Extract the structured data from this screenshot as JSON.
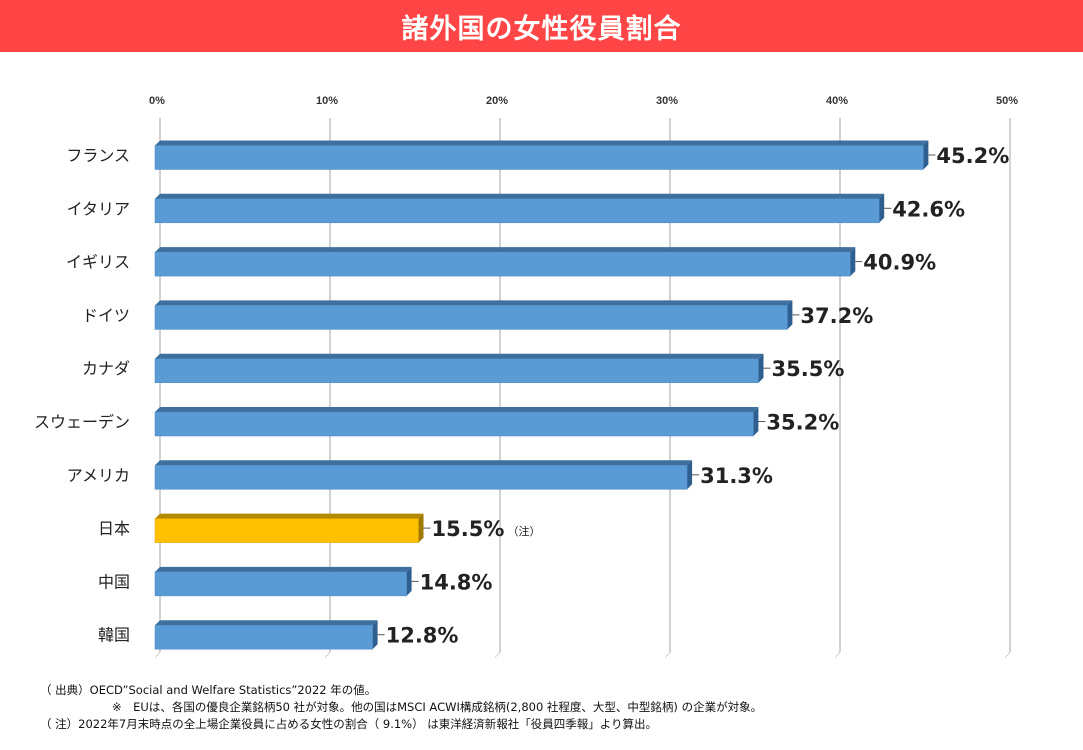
{
  "title": "諸外国の女性役員割合",
  "chart_data": {
    "type": "bar",
    "orientation": "horizontal",
    "categories": [
      "フランス",
      "イタリア",
      "イギリス",
      "ドイツ",
      "カナダ",
      "スウェーデン",
      "アメリカ",
      "日本",
      "中国",
      "韓国"
    ],
    "values": [
      45.2,
      42.6,
      40.9,
      37.2,
      35.5,
      35.2,
      31.3,
      15.5,
      14.8,
      12.8
    ],
    "value_labels": [
      "45.2%",
      "42.6%",
      "40.9%",
      "37.2%",
      "35.5%",
      "35.2%",
      "31.3%",
      "15.5%",
      "14.8%",
      "12.8%"
    ],
    "highlight_index": 7,
    "highlight_note": "（注）",
    "xlim": [
      0,
      50
    ],
    "x_ticks": [
      "0%",
      "10%",
      "20%",
      "30%",
      "40%",
      "50%"
    ],
    "x_tick_values": [
      0,
      10,
      20,
      30,
      40,
      50
    ],
    "tick_position": "top",
    "grid": true,
    "colors": {
      "bar": "#5b9bd5",
      "bar_top": "#3e6f9e",
      "bar_side": "#2f5f8f",
      "highlight": "#ffc000",
      "highlight_top": "#b38900",
      "highlight_side": "#a07a00",
      "grid": "#a6a6a6",
      "title_bg": "#ff4545"
    }
  },
  "notes": {
    "source": "（ 出典）OECD”Social and Welfare Statistics”2022 年の値。",
    "eu": "※　EUは、各国の優良企業銘柄50 社が対象。他の国はMSCI ACWI構成銘柄(2,800 社程度、大型、中型銘柄) の企業が対象。",
    "japan": "（ 注）2022年7月末時点の全上場企業役員に占める女性の割合（ 9.1%） は東洋経済新報社「役員四季報」より算出。"
  }
}
